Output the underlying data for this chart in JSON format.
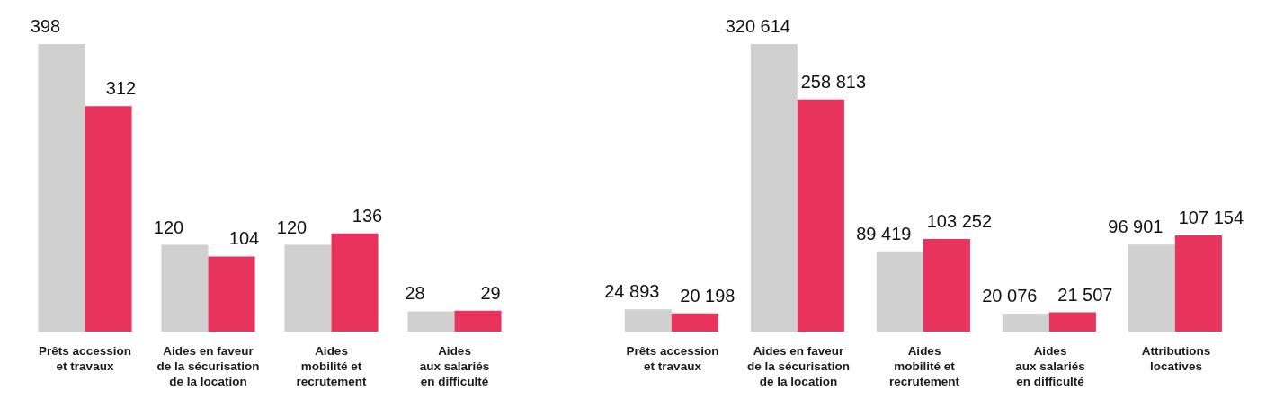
{
  "chart_data": [
    {
      "type": "bar",
      "categories": [
        "Prêts accession\net travaux",
        "Aides en faveur\nde la sécurisation\nde la location",
        "Aides\nmobilité et\nrecrutement",
        "Aides\naux salariés\nen difficulté"
      ],
      "data_labels": true,
      "series": [
        {
          "color": "#d0d0d0",
          "values": [
            398,
            120,
            120,
            28
          ]
        },
        {
          "color": "#e8345d",
          "values": [
            312,
            104,
            136,
            29
          ]
        }
      ]
    },
    {
      "type": "bar",
      "categories": [
        "Prêts accession\net travaux",
        "Aides en faveur\nde la sécurisation\nde la location",
        "Aides\nmobilité et\nrecrutement",
        "Aides\naux salariés\nen difficulté",
        "Attributions\nlocatives"
      ],
      "series": [
        {
          "color": "#d0d0d0",
          "values": [
            24893,
            320614,
            89419,
            20076,
            96901
          ],
          "value_labels": [
            "24 893",
            "320 614",
            "89 419",
            "20 076",
            "96 901"
          ]
        },
        {
          "color": "#e8345d",
          "values": [
            20198,
            258813,
            103252,
            21507,
            107154
          ],
          "value_labels": [
            "20 198",
            "258 813",
            "103 252",
            "21 507",
            "107 154"
          ]
        }
      ]
    }
  ]
}
